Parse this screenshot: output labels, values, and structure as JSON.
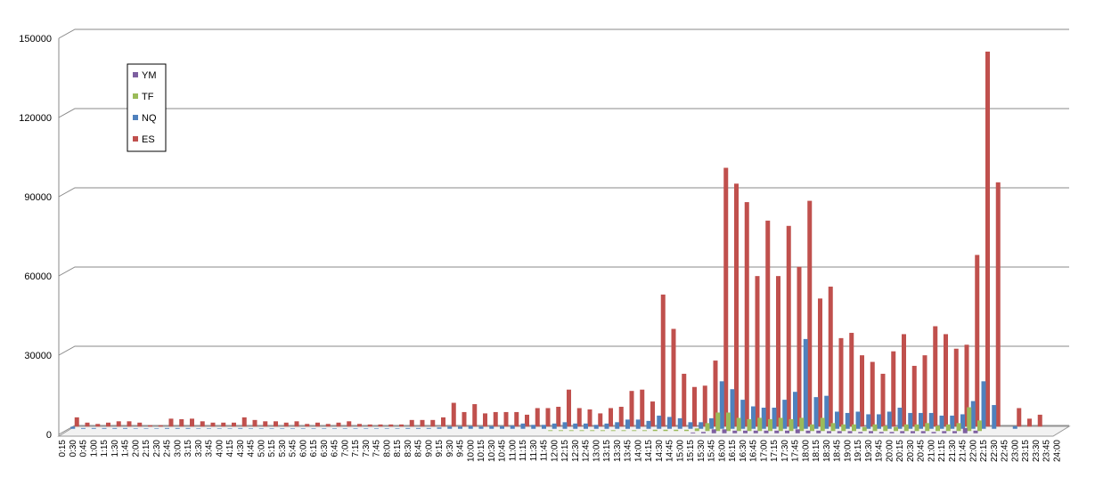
{
  "chart_data": {
    "type": "bar3d",
    "categories": [
      "0:15",
      "0:30",
      "0:45",
      "1:00",
      "1:15",
      "1:30",
      "1:45",
      "2:00",
      "2:15",
      "2:30",
      "2:45",
      "3:00",
      "3:15",
      "3:30",
      "3:45",
      "4:00",
      "4:15",
      "4:30",
      "4:45",
      "5:00",
      "5:15",
      "5:30",
      "5:45",
      "6:00",
      "6:15",
      "6:30",
      "6:45",
      "7:00",
      "7:15",
      "7:30",
      "7:45",
      "8:00",
      "8:15",
      "8:30",
      "8:45",
      "9:00",
      "9:15",
      "9:30",
      "9:45",
      "10:00",
      "10:15",
      "10:30",
      "10:45",
      "11:00",
      "11:15",
      "11:30",
      "11:45",
      "12:00",
      "12:15",
      "12:30",
      "12:45",
      "13:00",
      "13:15",
      "13:30",
      "13:45",
      "14:00",
      "14:15",
      "14:30",
      "14:45",
      "15:00",
      "15:15",
      "15:30",
      "15:45",
      "16:00",
      "16:15",
      "16:30",
      "16:45",
      "17:00",
      "17:15",
      "17:30",
      "17:45",
      "18:00",
      "18:15",
      "18:30",
      "18:45",
      "19:00",
      "19:15",
      "19:30",
      "19:45",
      "20:00",
      "20:15",
      "20:30",
      "20:45",
      "21:00",
      "21:15",
      "21:30",
      "21:45",
      "22:00",
      "22:15",
      "22:30",
      "22:45",
      "23:00",
      "23:15",
      "23:30",
      "23:45",
      "24:00"
    ],
    "series": [
      {
        "name": "YM",
        "color": "#7d5fa0",
        "values": [
          0,
          0,
          0,
          0,
          0,
          0,
          0,
          0,
          0,
          0,
          0,
          0,
          0,
          0,
          0,
          0,
          0,
          0,
          0,
          0,
          0,
          0,
          0,
          0,
          0,
          0,
          0,
          0,
          0,
          0,
          0,
          0,
          0,
          0,
          0,
          0,
          0,
          0,
          0,
          0,
          0,
          0,
          0,
          0,
          0,
          0,
          0,
          0,
          0,
          0,
          0,
          0,
          0,
          0,
          0,
          0,
          0,
          0,
          0,
          0,
          300,
          500,
          1500,
          1500,
          1000,
          1000,
          1000,
          1000,
          1000,
          1000,
          1500,
          1000,
          1000,
          800,
          800,
          800,
          500,
          800,
          500,
          500,
          800,
          800,
          800,
          500,
          800,
          800,
          2000,
          1000,
          0,
          0,
          0,
          0,
          0,
          0,
          0,
          0
        ]
      },
      {
        "name": "TF",
        "color": "#9bbb59",
        "values": [
          0,
          0,
          0,
          0,
          0,
          0,
          0,
          0,
          0,
          0,
          0,
          0,
          0,
          0,
          0,
          0,
          0,
          0,
          0,
          0,
          0,
          0,
          0,
          0,
          0,
          0,
          0,
          0,
          0,
          0,
          0,
          0,
          0,
          0,
          0,
          0,
          0,
          0,
          0,
          0,
          0,
          0,
          0,
          0,
          0,
          0,
          300,
          300,
          300,
          300,
          300,
          300,
          300,
          300,
          300,
          300,
          500,
          500,
          500,
          500,
          1000,
          3000,
          7000,
          7000,
          5000,
          4500,
          5000,
          4500,
          5000,
          4500,
          5000,
          2500,
          5000,
          3000,
          2500,
          2500,
          1500,
          2500,
          2000,
          1500,
          2500,
          2500,
          3000,
          2000,
          2500,
          3000,
          9000,
          4000,
          0,
          0,
          0,
          0,
          0,
          0,
          0,
          0
        ]
      },
      {
        "name": "NQ",
        "color": "#4f81bd",
        "values": [
          800,
          300,
          300,
          300,
          300,
          300,
          200,
          200,
          200,
          300,
          300,
          300,
          200,
          200,
          200,
          200,
          300,
          200,
          200,
          200,
          200,
          200,
          200,
          200,
          200,
          200,
          200,
          200,
          200,
          200,
          200,
          200,
          300,
          300,
          300,
          500,
          800,
          800,
          1000,
          800,
          1000,
          1000,
          1200,
          2000,
          1500,
          1500,
          2000,
          2500,
          2000,
          2000,
          1500,
          2000,
          2500,
          3500,
          3500,
          3000,
          5000,
          4500,
          4000,
          2500,
          2500,
          4000,
          18000,
          15000,
          11000,
          8500,
          8000,
          8000,
          11000,
          14000,
          34000,
          12000,
          12500,
          6500,
          6000,
          6500,
          5500,
          5500,
          6500,
          8000,
          6000,
          6000,
          6000,
          5000,
          5000,
          5500,
          10500,
          18000,
          9000,
          0,
          1000,
          0,
          0,
          0,
          0,
          0
        ]
      },
      {
        "name": "ES",
        "color": "#c0504d",
        "values": [
          3500,
          1500,
          1000,
          1500,
          2000,
          2000,
          1500,
          500,
          500,
          3000,
          2800,
          3000,
          2000,
          1500,
          1500,
          1500,
          3500,
          2500,
          2000,
          2000,
          1500,
          2000,
          1000,
          1500,
          1000,
          1500,
          2000,
          1000,
          800,
          800,
          800,
          800,
          2500,
          2500,
          2500,
          3500,
          9000,
          5500,
          8500,
          5000,
          5500,
          5500,
          5500,
          4500,
          7000,
          7000,
          7500,
          14000,
          7000,
          6500,
          5000,
          7000,
          7500,
          13500,
          14000,
          9500,
          50000,
          37000,
          20000,
          15000,
          15500,
          25000,
          98000,
          92000,
          85000,
          57000,
          78000,
          57000,
          76000,
          60500,
          85500,
          48500,
          53000,
          33500,
          35500,
          27000,
          24500,
          20000,
          28500,
          35000,
          23000,
          27000,
          38000,
          35000,
          29500,
          31000,
          65000,
          142000,
          92500,
          0,
          7000,
          3000,
          4500,
          0,
          0,
          0
        ]
      }
    ],
    "ylim": [
      0,
      150000
    ],
    "yticks": [
      0,
      30000,
      60000,
      90000,
      120000,
      150000
    ],
    "grid": true,
    "legend": "left"
  }
}
